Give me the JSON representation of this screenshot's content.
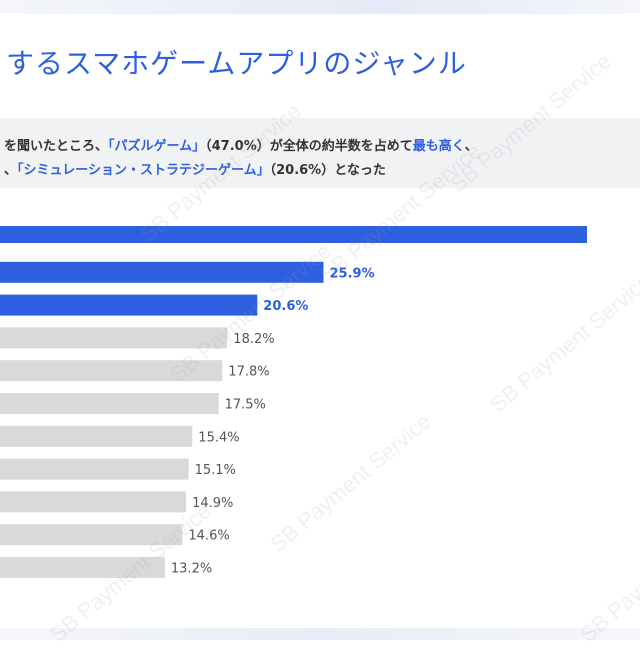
{
  "title": "するスマホゲームアプリのジャンル",
  "summary": {
    "line1": [
      {
        "text": "を聞いたところ、",
        "hl": false
      },
      {
        "text": "「パズルゲーム」",
        "hl": true
      },
      {
        "text": "（47.0%）が全体の約半数を占めて",
        "hl": false
      },
      {
        "text": "最も高く",
        "hl": true
      },
      {
        "text": "、",
        "hl": false
      }
    ],
    "line2": [
      {
        "text": "、",
        "hl": false
      },
      {
        "text": "「シミュレーション・ストラテジーゲーム」",
        "hl": true
      },
      {
        "text": "（20.6%）となった",
        "hl": false
      }
    ]
  },
  "watermark": "SB Payment Service",
  "colors": {
    "accent": "#2d5fe0",
    "muted_bar": "#d9d9d9",
    "label_muted": "#555555"
  },
  "chart_data": {
    "type": "bar",
    "orientation": "horizontal",
    "values": [
      47.0,
      25.9,
      20.6,
      18.2,
      17.8,
      17.5,
      15.4,
      15.1,
      14.9,
      14.6,
      13.2
    ],
    "labels": [
      "",
      "25.9%",
      "20.6%",
      "18.2%",
      "17.8%",
      "17.5%",
      "15.4%",
      "15.1%",
      "14.9%",
      "14.6%",
      "13.2%"
    ],
    "highlight": [
      true,
      true,
      true,
      false,
      false,
      false,
      false,
      false,
      false,
      false,
      false
    ],
    "unit": "%"
  }
}
